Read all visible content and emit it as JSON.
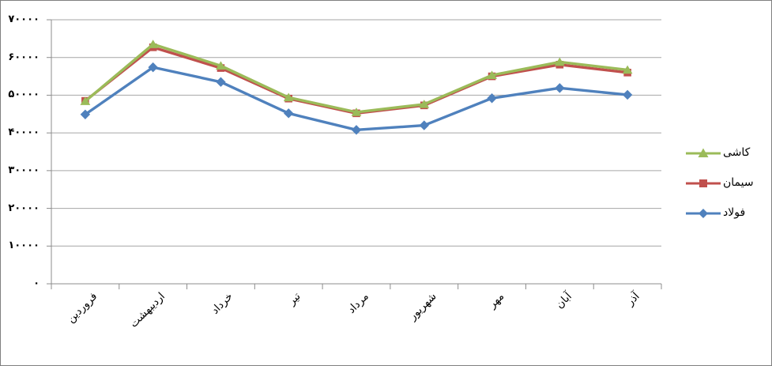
{
  "chart_data": {
    "type": "line",
    "title": "",
    "xlabel": "",
    "ylabel": "",
    "categories": [
      "فروردین",
      "اردیبهشت",
      "خرداد",
      "تیر",
      "مرداد",
      "شهریور",
      "مهر",
      "آبان",
      "آذر"
    ],
    "series": [
      {
        "key": "kashi",
        "name": "کاشی",
        "marker": "triangle",
        "color": "#9BBB59",
        "values": [
          48400,
          63500,
          57800,
          49400,
          45500,
          47600,
          55300,
          58800,
          56700
        ]
      },
      {
        "key": "siman",
        "name": "سیمان",
        "marker": "square",
        "color": "#C0504D",
        "values": [
          48500,
          62700,
          57200,
          49100,
          45200,
          47300,
          55000,
          58100,
          56000
        ]
      },
      {
        "key": "foolad",
        "name": "فولاد",
        "marker": "diamond",
        "color": "#4F81BD",
        "values": [
          44900,
          57400,
          53500,
          45200,
          40800,
          42000,
          49200,
          51900,
          50100
        ]
      }
    ],
    "ylim": [
      0,
      70000
    ],
    "ytick_step": 10000,
    "ytick_labels": [
      "۰",
      "۱۰۰۰۰",
      "۲۰۰۰۰",
      "۳۰۰۰۰",
      "۴۰۰۰۰",
      "۵۰۰۰۰",
      "۶۰۰۰۰",
      "۷۰۰۰۰"
    ],
    "legend_position": "right",
    "grid": "horizontal-major",
    "grid_color": "#a6a6a6",
    "axis_color": "#8c8c8c",
    "text_color": "#000000"
  }
}
